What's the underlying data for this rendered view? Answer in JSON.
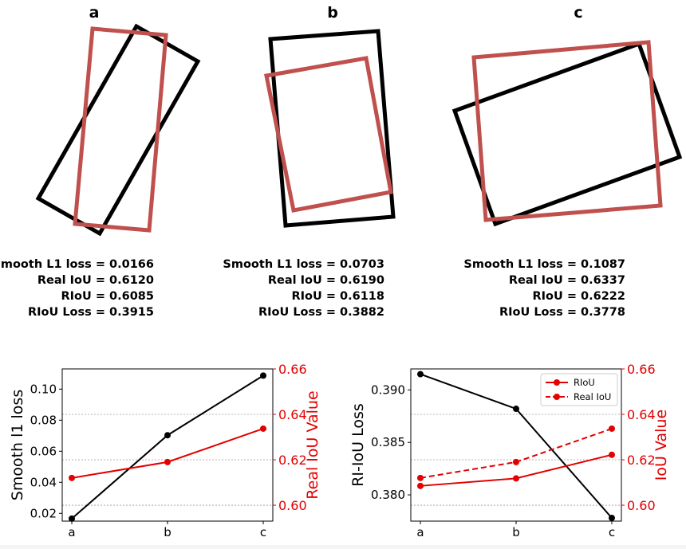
{
  "colors": {
    "black": "#000000",
    "box_red": "#c0504d",
    "series_red": "#e30000",
    "grid": "#9a9a9a"
  },
  "panels": [
    {
      "label": "a",
      "stats": [
        {
          "name": "Smooth L1 loss",
          "value": "0.0166"
        },
        {
          "name": "Real IoU",
          "value": "0.6120"
        },
        {
          "name": "RIoU",
          "value": "0.6085"
        },
        {
          "name": "RIoU Loss",
          "value": "0.3915"
        }
      ]
    },
    {
      "label": "b",
      "stats": [
        {
          "name": "Smooth L1 loss",
          "value": "0.0703"
        },
        {
          "name": "Real IoU",
          "value": "0.6190"
        },
        {
          "name": "RIoU",
          "value": "0.6118"
        },
        {
          "name": "RIoU Loss",
          "value": "0.3882"
        }
      ]
    },
    {
      "label": "c",
      "stats": [
        {
          "name": "Smooth L1 loss",
          "value": "0.1087"
        },
        {
          "name": "Real IoU",
          "value": "0.6337"
        },
        {
          "name": "RIoU",
          "value": "0.6222"
        },
        {
          "name": "RIoU Loss",
          "value": "0.3778"
        }
      ]
    }
  ],
  "chart_data": [
    {
      "type": "line",
      "categories": [
        "a",
        "b",
        "c"
      ],
      "ylabel": "Smooth l1 loss",
      "ylim": [
        0.015,
        0.113
      ],
      "yticks": [
        "0.02",
        "0.04",
        "0.06",
        "0.08",
        "0.10"
      ],
      "ytick_values": [
        0.02,
        0.04,
        0.06,
        0.08,
        0.1
      ],
      "y2label": "Real IoU Value",
      "y2lim": [
        0.593,
        0.66
      ],
      "y2ticks": [
        "0.60",
        "0.62",
        "0.64",
        "0.66"
      ],
      "y2tick_values": [
        0.6,
        0.62,
        0.64,
        0.66
      ],
      "grid": "y2 dotted",
      "series": [
        {
          "values": [
            0.0166,
            0.0703,
            0.1087
          ],
          "axis": "left",
          "color": "#000000",
          "style": "solid"
        },
        {
          "values": [
            0.612,
            0.619,
            0.6337
          ],
          "axis": "right",
          "color": "#e30000",
          "style": "solid"
        }
      ]
    },
    {
      "type": "line",
      "categories": [
        "a",
        "b",
        "c"
      ],
      "ylabel": "RI-IoU Loss",
      "ylim": [
        0.3775,
        0.392
      ],
      "yticks": [
        "0.380",
        "0.385",
        "0.390"
      ],
      "ytick_values": [
        0.38,
        0.385,
        0.39
      ],
      "y2label": "IoU Value",
      "y2lim": [
        0.593,
        0.66
      ],
      "y2ticks": [
        "0.60",
        "0.62",
        "0.64",
        "0.66"
      ],
      "y2tick_values": [
        0.6,
        0.62,
        0.64,
        0.66
      ],
      "grid": "y2 dotted",
      "legend_position": "top-right",
      "series": [
        {
          "values": [
            0.3915,
            0.3882,
            0.3778
          ],
          "axis": "left",
          "color": "#000000",
          "style": "solid"
        },
        {
          "name": "RIoU",
          "values": [
            0.6085,
            0.6118,
            0.6222
          ],
          "axis": "right",
          "color": "#e30000",
          "style": "solid"
        },
        {
          "name": "Real IoU",
          "values": [
            0.612,
            0.619,
            0.6337
          ],
          "axis": "right",
          "color": "#e30000",
          "style": "dashed"
        }
      ]
    }
  ]
}
